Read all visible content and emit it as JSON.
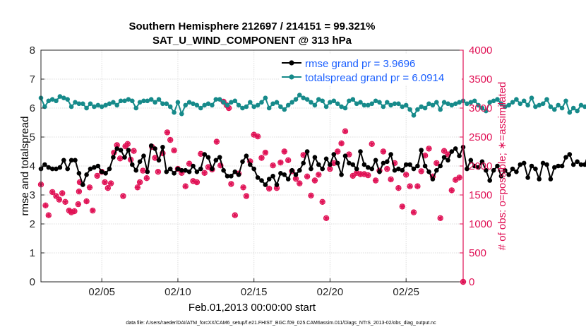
{
  "chart_data": {
    "type": "line",
    "title_line1": "Southern Hemisphere 212697 / 214151 = 99.321%",
    "title_line2": "SAT_U_WIND_COMPONENT @ 313 hPa",
    "xlabel": "Feb.01,2013 00:00:00 start",
    "ylabel_left": "rmse and totalspread",
    "ylabel_right": "# of obs: o=possible; ∗=assimilated",
    "x_range_days": [
      1,
      28.75
    ],
    "ylim_left": [
      0,
      8
    ],
    "ylim_right": [
      0,
      4000
    ],
    "x_ticks": [
      {
        "day": 5,
        "label": "02/05"
      },
      {
        "day": 10,
        "label": "02/10"
      },
      {
        "day": 15,
        "label": "02/15"
      },
      {
        "day": 20,
        "label": "02/20"
      },
      {
        "day": 25,
        "label": "02/25"
      }
    ],
    "y_ticks_left": [
      "0",
      "1",
      "2",
      "3",
      "4",
      "5",
      "6",
      "7",
      "8"
    ],
    "y_ticks_right": [
      "0",
      "500",
      "1000",
      "1500",
      "2000",
      "2500",
      "3000",
      "3500",
      "4000"
    ],
    "legend": [
      {
        "label": "rmse grand pr = 3.9696",
        "color": "#000000"
      },
      {
        "label": "totalspread grand pr = 6.0914",
        "color": "#168a8a"
      }
    ],
    "series": [
      {
        "name": "rmse",
        "color": "#000000",
        "x_start_day": 1.0,
        "x_step_days": 0.25,
        "values": [
          3.9,
          4.05,
          3.95,
          3.9,
          3.9,
          3.95,
          4.2,
          3.9,
          4.2,
          4.2,
          3.75,
          3.35,
          3.7,
          3.9,
          3.95,
          4.0,
          3.8,
          3.75,
          3.9,
          4.3,
          4.6,
          4.55,
          4.3,
          4.55,
          4.05,
          3.85,
          4.15,
          4.35,
          3.8,
          4.7,
          4.6,
          4.2,
          4.65,
          3.8,
          3.9,
          3.75,
          3.9,
          3.85,
          3.85,
          3.8,
          4.0,
          3.8,
          3.9,
          4.4,
          4.3,
          3.9,
          4.2,
          4.3,
          3.85,
          3.65,
          3.65,
          3.8,
          3.7,
          4.15,
          4.35,
          4.05,
          3.9,
          3.6,
          3.5,
          3.35,
          3.55,
          3.65,
          3.35,
          3.75,
          3.7,
          3.55,
          3.85,
          3.7,
          3.85,
          4.1,
          4.5,
          3.9,
          4.3,
          4.05,
          3.9,
          4.25,
          4.05,
          4.4,
          4.1,
          3.7,
          4.35,
          4.1,
          4.05,
          3.9,
          4.5,
          4.05,
          3.95,
          3.9,
          4.2,
          3.8,
          4.1,
          4.15,
          4.4,
          3.85,
          3.9,
          3.85,
          4.05,
          4.05,
          3.9,
          4.0,
          4.55,
          4.0,
          3.8,
          3.55,
          3.85,
          4.0,
          4.3,
          4.2,
          4.5,
          4.6,
          4.35,
          4.65,
          3.9,
          4.2,
          4.0,
          3.95,
          4.15,
          3.85,
          3.5,
          3.85,
          4.0,
          3.65,
          3.85,
          3.7,
          3.9,
          3.8,
          4.05,
          4.1,
          3.6,
          4.0,
          3.9,
          3.55,
          4.1,
          4.05,
          3.55,
          3.95,
          4.0,
          4.0,
          4.3,
          4.4,
          4.05,
          4.15,
          4.05,
          4.05,
          4.45
        ]
      },
      {
        "name": "totalspread",
        "color": "#168a8a",
        "x_start_day": 1.0,
        "x_step_days": 0.25,
        "values": [
          6.35,
          6.05,
          6.25,
          6.3,
          6.25,
          6.4,
          6.35,
          6.3,
          6.05,
          6.2,
          6.15,
          6.15,
          6.0,
          6.15,
          6.05,
          6.1,
          6.05,
          6.1,
          6.15,
          6.2,
          6.1,
          6.25,
          6.25,
          6.3,
          6.25,
          6.0,
          6.2,
          6.25,
          6.25,
          6.3,
          6.2,
          6.3,
          6.15,
          6.15,
          6.05,
          5.85,
          6.2,
          5.8,
          6.1,
          6.2,
          6.15,
          6.1,
          6.0,
          6.1,
          6.15,
          6.1,
          6.3,
          6.3,
          6.2,
          6.1,
          6.2,
          6.25,
          6.1,
          6.0,
          6.05,
          6.2,
          6.05,
          6.1,
          6.2,
          6.35,
          6.0,
          6.15,
          6.2,
          6.05,
          5.95,
          6.1,
          6.2,
          6.3,
          6.45,
          6.35,
          6.3,
          6.2,
          6.1,
          6.3,
          6.25,
          6.05,
          6.2,
          6.25,
          6.15,
          6.05,
          6.0,
          6.25,
          6.3,
          6.15,
          6.2,
          6.1,
          6.1,
          6.15,
          6.25,
          6.2,
          6.05,
          6.2,
          6.1,
          6.15,
          6.15,
          6.05,
          6.1,
          5.95,
          5.75,
          5.95,
          6.05,
          6.0,
          6.15,
          6.1,
          6.2,
          5.95,
          6.2,
          6.15,
          6.1,
          6.15,
          6.2,
          6.25,
          6.15,
          6.2,
          6.25,
          6.1,
          6.0,
          5.9,
          6.2,
          6.25,
          6.3,
          6.15,
          6.05,
          6.1,
          6.2,
          6.3,
          6.15,
          6.25,
          6.1,
          6.35,
          6.05,
          6.1,
          6.15,
          6.3,
          6.05,
          5.95,
          6.1,
          6.0,
          6.25,
          5.85,
          6.0,
          5.9,
          6.1,
          6.05,
          6.1,
          6.2,
          6.1
        ]
      },
      {
        "name": "obs_assimilated",
        "color": "#e01155",
        "axis": "right",
        "points": [
          {
            "day": 1.0,
            "value": 1680
          },
          {
            "day": 1.3,
            "value": 1320
          },
          {
            "day": 1.5,
            "value": 1150
          },
          {
            "day": 1.75,
            "value": 1550
          },
          {
            "day": 2.0,
            "value": 1480
          },
          {
            "day": 2.2,
            "value": 1420
          },
          {
            "day": 2.4,
            "value": 1530
          },
          {
            "day": 2.6,
            "value": 1380
          },
          {
            "day": 2.85,
            "value": 1230
          },
          {
            "day": 3.0,
            "value": 1200
          },
          {
            "day": 3.2,
            "value": 1220
          },
          {
            "day": 3.45,
            "value": 1340
          },
          {
            "day": 3.5,
            "value": 1560
          },
          {
            "day": 3.55,
            "value": 1720
          },
          {
            "day": 4.0,
            "value": 1390
          },
          {
            "day": 4.2,
            "value": 1630
          },
          {
            "day": 4.4,
            "value": 1230
          },
          {
            "day": 4.7,
            "value": 1830
          },
          {
            "day": 5.0,
            "value": 1900
          },
          {
            "day": 5.2,
            "value": 1720
          },
          {
            "day": 5.4,
            "value": 1620
          },
          {
            "day": 5.6,
            "value": 1700
          },
          {
            "day": 5.8,
            "value": 2230
          },
          {
            "day": 6.0,
            "value": 2360
          },
          {
            "day": 6.2,
            "value": 2130
          },
          {
            "day": 6.4,
            "value": 1480
          },
          {
            "day": 6.55,
            "value": 2340
          },
          {
            "day": 6.7,
            "value": 2380
          },
          {
            "day": 6.9,
            "value": 2110
          },
          {
            "day": 7.1,
            "value": 2260
          },
          {
            "day": 7.35,
            "value": 1630
          },
          {
            "day": 7.5,
            "value": 1720
          },
          {
            "day": 7.7,
            "value": 1920
          },
          {
            "day": 7.95,
            "value": 1790
          },
          {
            "day": 8.3,
            "value": 2330
          },
          {
            "day": 8.5,
            "value": 2140
          },
          {
            "day": 8.7,
            "value": 1900
          },
          {
            "day": 9.0,
            "value": 2220
          },
          {
            "day": 9.3,
            "value": 2580
          },
          {
            "day": 9.5,
            "value": 2450
          },
          {
            "day": 9.75,
            "value": 2270
          },
          {
            "day": 10.0,
            "value": 1950
          },
          {
            "day": 10.25,
            "value": 1880
          },
          {
            "day": 10.5,
            "value": 1650
          },
          {
            "day": 10.75,
            "value": 2040
          },
          {
            "day": 11.0,
            "value": 1740
          },
          {
            "day": 11.25,
            "value": 1720
          },
          {
            "day": 11.5,
            "value": 2210
          },
          {
            "day": 11.75,
            "value": 1880
          },
          {
            "day": 12.0,
            "value": 1980
          },
          {
            "day": 12.25,
            "value": 1940
          },
          {
            "day": 12.55,
            "value": 2420
          },
          {
            "day": 12.8,
            "value": 2010
          },
          {
            "day": 13.0,
            "value": 3110
          },
          {
            "day": 13.2,
            "value": 3050
          },
          {
            "day": 13.35,
            "value": 3000
          },
          {
            "day": 13.5,
            "value": 1690
          },
          {
            "day": 13.75,
            "value": 1150
          },
          {
            "day": 14.0,
            "value": 1870
          },
          {
            "day": 14.3,
            "value": 1630
          },
          {
            "day": 14.5,
            "value": 1480
          },
          {
            "day": 14.75,
            "value": 2080
          },
          {
            "day": 15.0,
            "value": 2540
          },
          {
            "day": 15.25,
            "value": 2510
          },
          {
            "day": 15.5,
            "value": 2140
          },
          {
            "day": 15.75,
            "value": 2230
          },
          {
            "day": 16.0,
            "value": 1610
          },
          {
            "day": 16.25,
            "value": 2010
          },
          {
            "day": 16.5,
            "value": 1620
          },
          {
            "day": 16.75,
            "value": 2060
          },
          {
            "day": 17.0,
            "value": 2250
          },
          {
            "day": 17.25,
            "value": 2100
          },
          {
            "day": 17.5,
            "value": 1910
          },
          {
            "day": 17.75,
            "value": 1780
          },
          {
            "day": 18.0,
            "value": 1700
          },
          {
            "day": 18.25,
            "value": 2190
          },
          {
            "day": 18.5,
            "value": 1820
          },
          {
            "day": 18.75,
            "value": 1490
          },
          {
            "day": 19.0,
            "value": 1750
          },
          {
            "day": 19.25,
            "value": 1850
          },
          {
            "day": 19.5,
            "value": 1380
          },
          {
            "day": 19.75,
            "value": 1100
          },
          {
            "day": 20.0,
            "value": 1950
          },
          {
            "day": 20.25,
            "value": 2050
          },
          {
            "day": 20.5,
            "value": 2250
          },
          {
            "day": 20.75,
            "value": 2390
          },
          {
            "day": 21.0,
            "value": 2600
          },
          {
            "day": 21.25,
            "value": 2200
          },
          {
            "day": 21.5,
            "value": 1830
          },
          {
            "day": 21.75,
            "value": 1880
          },
          {
            "day": 22.0,
            "value": 1860
          },
          {
            "day": 22.25,
            "value": 1860
          },
          {
            "day": 22.5,
            "value": 1840
          },
          {
            "day": 22.75,
            "value": 2380
          },
          {
            "day": 23.0,
            "value": 1750
          },
          {
            "day": 23.25,
            "value": 1920
          },
          {
            "day": 23.5,
            "value": 2250
          },
          {
            "day": 23.75,
            "value": 1950
          },
          {
            "day": 24.0,
            "value": 1770
          },
          {
            "day": 24.25,
            "value": 2050
          },
          {
            "day": 24.5,
            "value": 1620
          },
          {
            "day": 24.75,
            "value": 1300
          },
          {
            "day": 25.0,
            "value": 1850
          },
          {
            "day": 25.25,
            "value": 1650
          },
          {
            "day": 25.5,
            "value": 1200
          },
          {
            "day": 25.75,
            "value": 1650
          },
          {
            "day": 26.0,
            "value": 1910
          },
          {
            "day": 26.25,
            "value": 2180
          },
          {
            "day": 26.5,
            "value": 2300
          },
          {
            "day": 26.75,
            "value": 1820
          },
          {
            "day": 27.0,
            "value": 2050
          },
          {
            "day": 27.25,
            "value": 1100
          },
          {
            "day": 27.5,
            "value": 2260
          },
          {
            "day": 27.75,
            "value": 2200
          },
          {
            "day": 28.0,
            "value": 1580
          },
          {
            "day": 28.25,
            "value": 1760
          },
          {
            "day": 28.5,
            "value": 1800
          },
          {
            "day": 28.75,
            "value": 0
          }
        ]
      }
    ]
  },
  "footer": "data file: /Users/raeder/DAI/ATM_forcXX/CAM6_setup/f.e21.FHIST_BGC.f09_025.CAM6assim.011/Diags_NTrS_2013-02/obs_diag_output.nc",
  "colors": {
    "rmse": "#000000",
    "totalspread": "#168a8a",
    "obs": "#e01155",
    "legend_text": "#1a5fff"
  }
}
